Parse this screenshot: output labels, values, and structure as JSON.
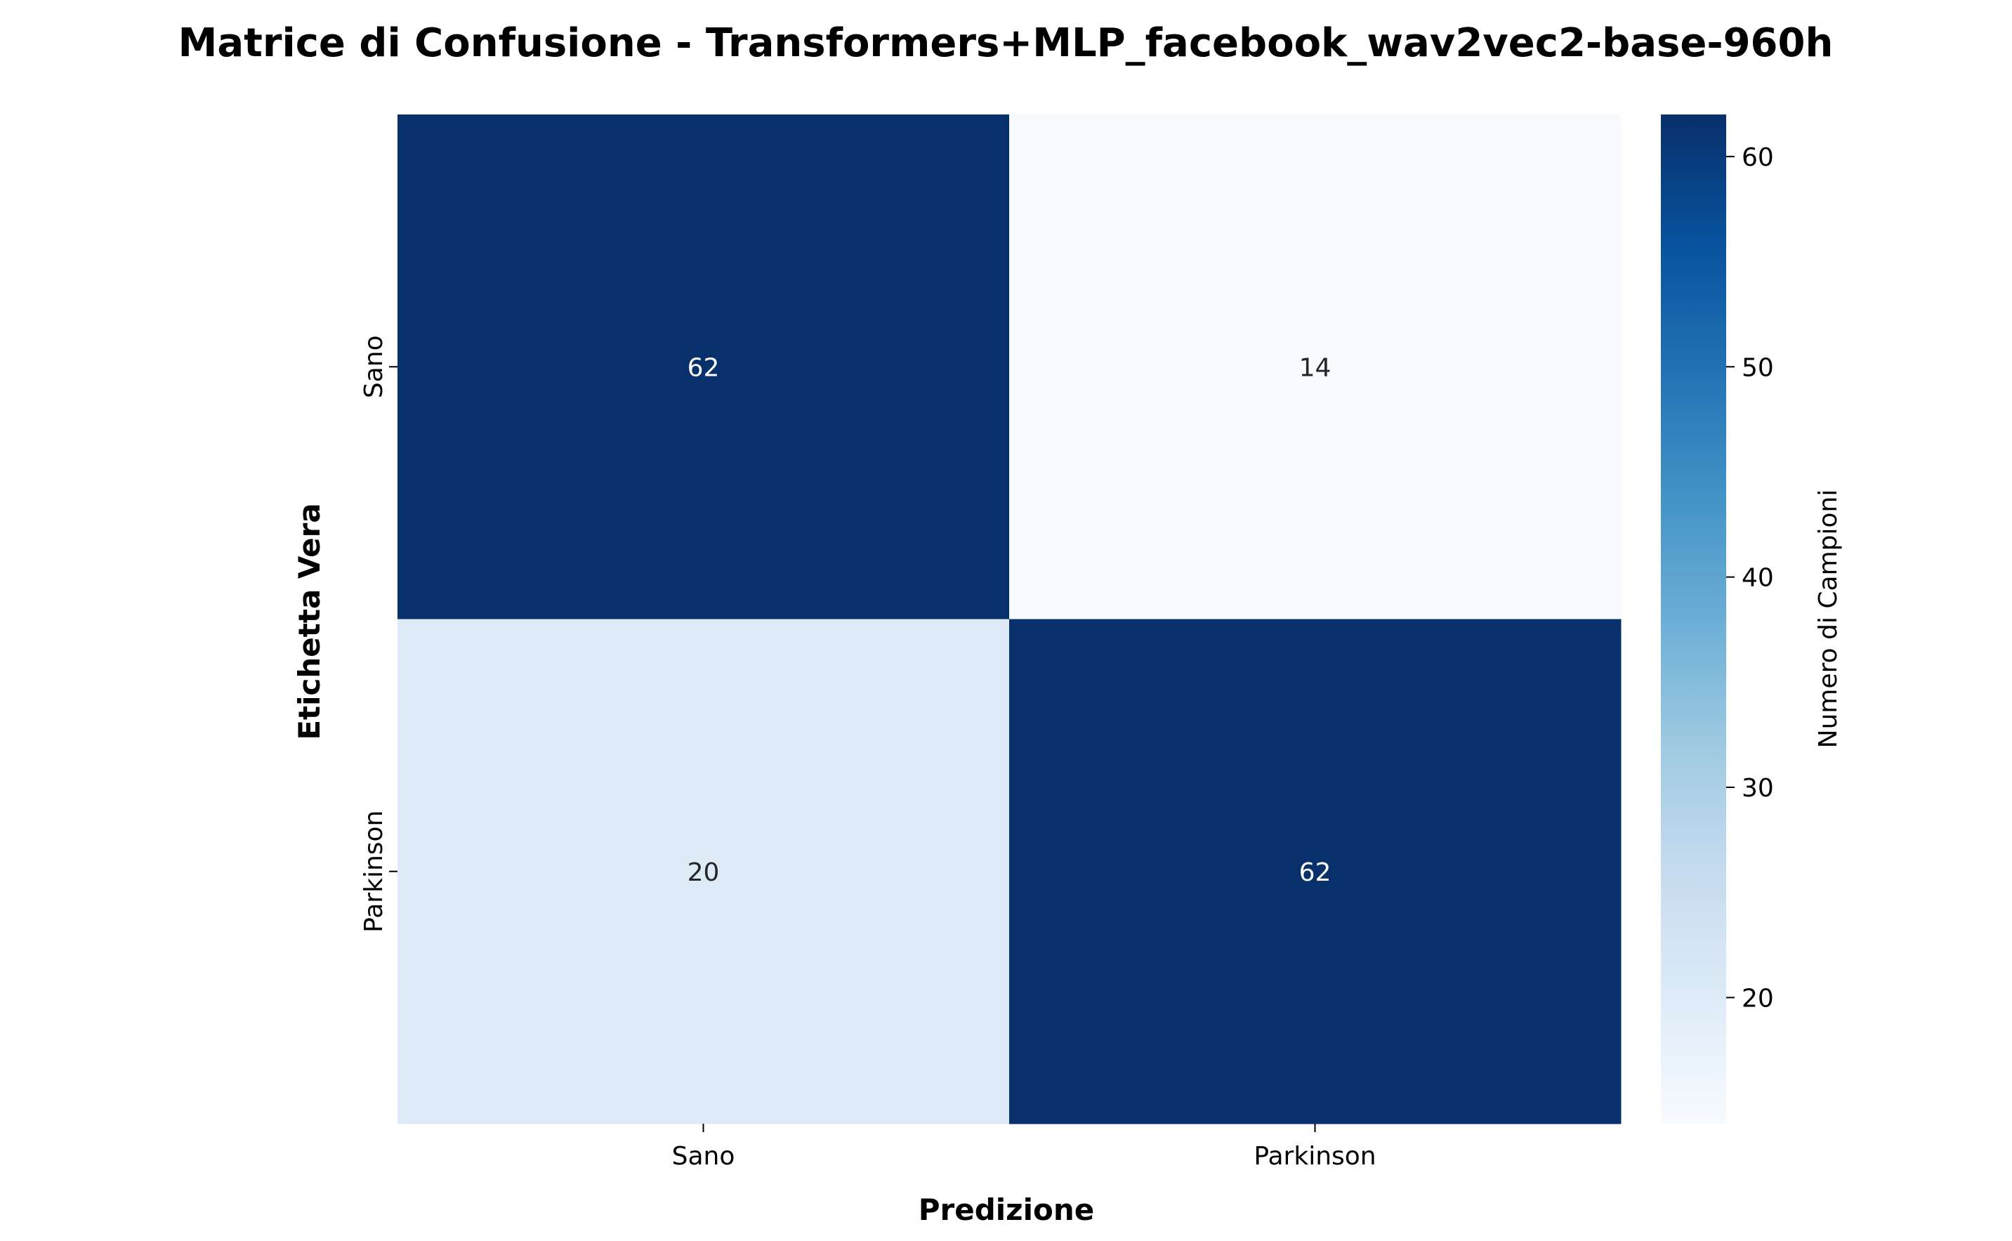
{
  "chart_data": {
    "type": "heatmap",
    "title": "Matrice di Confusione - Transformers+MLP_facebook_wav2vec2-base-960h",
    "xlabel": "Predizione",
    "ylabel": "Etichetta Vera",
    "x_categories": [
      "Sano",
      "Parkinson"
    ],
    "y_categories": [
      "Sano",
      "Parkinson"
    ],
    "values": [
      [
        62,
        14
      ],
      [
        20,
        62
      ]
    ],
    "colorbar": {
      "label": "Numero di Campioni",
      "range": [
        14,
        62
      ],
      "ticks": [
        20,
        30,
        40,
        50,
        60
      ],
      "colormap": "Blues"
    },
    "grid": false
  }
}
